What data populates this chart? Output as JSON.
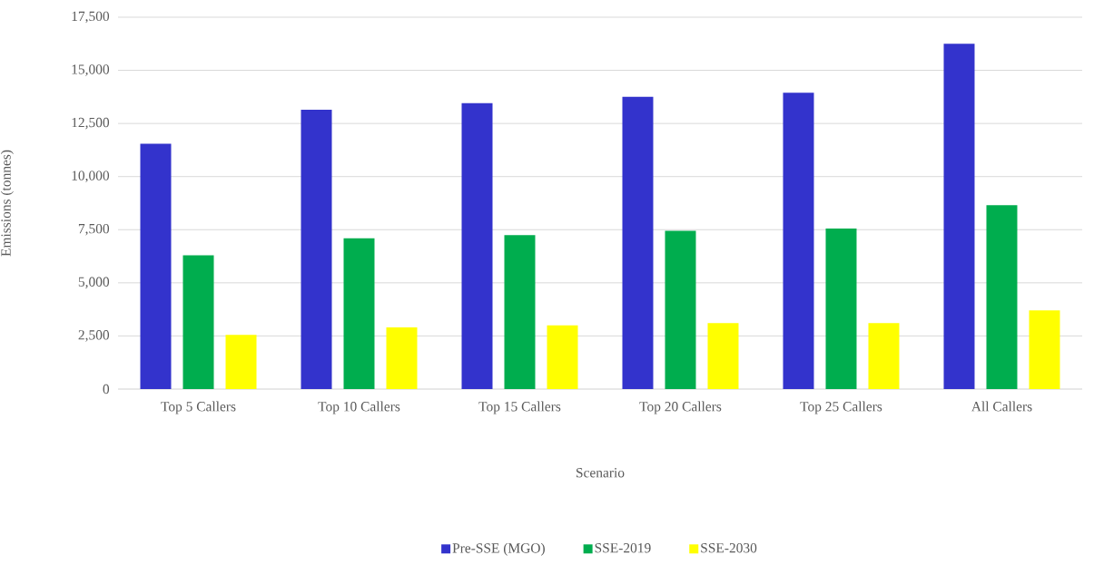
{
  "chart_data": {
    "type": "bar",
    "xlabel": "Scenario",
    "ylabel": "Emissions (tonnes)",
    "categories": [
      "Top 5 Callers",
      "Top 10 Callers",
      "Top 15 Callers",
      "Top 20 Callers",
      "Top 25 Callers",
      "All Callers"
    ],
    "series": [
      {
        "name": "Pre-SSE (MGO)",
        "color": "#3333cc",
        "values": [
          11550,
          13150,
          13450,
          13750,
          13950,
          16250
        ]
      },
      {
        "name": "SSE-2019",
        "color": "#00ad4e",
        "values": [
          6300,
          7100,
          7250,
          7450,
          7550,
          8650
        ]
      },
      {
        "name": "SSE-2030",
        "color": "#ffff00",
        "values": [
          2550,
          2900,
          3000,
          3100,
          3100,
          3700
        ]
      }
    ],
    "ylim": [
      0,
      17500
    ],
    "yticks": [
      0,
      {
        "value": 2500,
        "label": "2,500"
      },
      {
        "value": 5000,
        "label": "5,000"
      },
      {
        "value": 7500,
        "label": "7,500"
      },
      {
        "value": 10000,
        "label": "10,000"
      },
      {
        "value": 12500,
        "label": "12,500"
      },
      {
        "value": 15000,
        "label": "15,000"
      },
      {
        "value": 17500,
        "label": "17,500"
      }
    ],
    "grid": "y",
    "legend": "bottom"
  }
}
